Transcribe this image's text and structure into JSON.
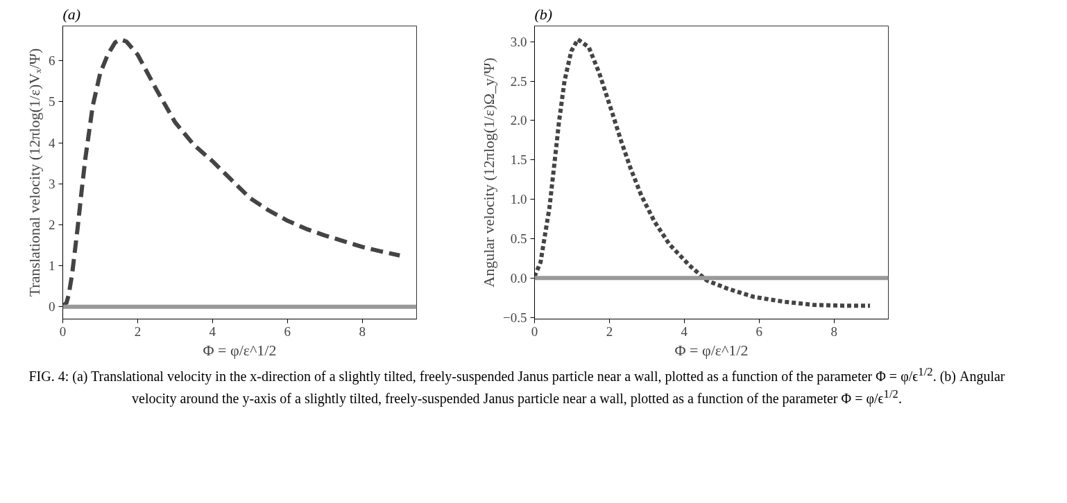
{
  "chart_data": [
    {
      "type": "line",
      "title": "(a)",
      "xlabel": "Φ = φ/ε^1/2",
      "ylabel": "Translational velocity (12πlog(1/ε)Vₓ/Ψ)",
      "xlim": [
        0,
        9.45
      ],
      "ylim": [
        -0.3,
        6.85
      ],
      "xticks": [
        0,
        2,
        4,
        6,
        8
      ],
      "yticks": [
        0,
        1,
        2,
        3,
        4,
        5,
        6
      ],
      "grid": false,
      "line_style": "dashed",
      "series": [
        {
          "color": "#444444",
          "x": [
            0,
            0.1,
            0.16,
            0.25,
            0.4,
            0.5,
            0.6,
            0.8,
            1.0,
            1.2,
            1.4,
            1.55,
            1.7,
            2.0,
            2.5,
            3.0,
            3.5,
            4.0,
            4.5,
            5.0,
            5.5,
            6.0,
            6.5,
            7.0,
            7.5,
            8.0,
            8.5,
            9.0
          ],
          "values": [
            0,
            0.1,
            0.3,
            0.8,
            1.95,
            2.8,
            3.6,
            4.9,
            5.7,
            6.15,
            6.45,
            6.52,
            6.47,
            6.15,
            5.3,
            4.5,
            3.95,
            3.55,
            3.1,
            2.65,
            2.35,
            2.1,
            1.9,
            1.74,
            1.6,
            1.46,
            1.35,
            1.25
          ]
        }
      ],
      "ref_lines": [
        {
          "axis": "y",
          "value": 0,
          "color": "#999999"
        }
      ],
      "annotations": [
        "FIG. 4: (a) Translational velocity in the x-direction of a slightly tilted, freely-suspended Janus particle near a wall, plotted as a function of the parameter Φ = φ/ϵ$^{1/2}$. (b) Angular velocity around the y-axis of a slightly tilted, freely-suspended Janus particle near a wall, plotted as a function of the parameter Φ = φ/ϵ$^{1/2}$."
      ]
    },
    {
      "type": "line",
      "title": "(b)",
      "xlabel": "Φ = φ/ε^1/2",
      "ylabel": "Angular velocity (12πlog(1/ε)Ω_y/Ψ)",
      "xlim": [
        0,
        9.45
      ],
      "ylim": [
        -0.52,
        3.2
      ],
      "xticks": [
        0,
        2,
        4,
        6,
        8
      ],
      "yticks": [
        {
          "value": -0.5,
          "label": "−0.5"
        },
        {
          "value": 0,
          "label": "0.0"
        },
        {
          "value": 0.5,
          "label": "0.5"
        },
        {
          "value": 1,
          "label": "1.0"
        },
        {
          "value": 1.5,
          "label": "1.5"
        },
        {
          "value": 2,
          "label": "2.0"
        },
        {
          "value": 2.5,
          "label": "2.5"
        },
        {
          "value": 3,
          "label": "3.0"
        }
      ],
      "grid": false,
      "line_style": "dotted",
      "series": [
        {
          "color": "#444444",
          "x": [
            0,
            0.16,
            0.4,
            0.53,
            0.65,
            0.8,
            0.98,
            1.16,
            1.45,
            1.73,
            2.08,
            2.32,
            2.56,
            2.85,
            3.2,
            3.6,
            4.14,
            4.6,
            5.13,
            5.87,
            6.66,
            7.45,
            8.24,
            8.96
          ],
          "values": [
            0.02,
            0.2,
            0.9,
            1.45,
            1.97,
            2.5,
            2.88,
            3.03,
            2.93,
            2.6,
            2.09,
            1.73,
            1.4,
            1.05,
            0.72,
            0.43,
            0.16,
            -0.03,
            -0.13,
            -0.24,
            -0.3,
            -0.34,
            -0.35,
            -0.35
          ]
        }
      ],
      "ref_lines": [
        {
          "axis": "y",
          "value": 0,
          "color": "#999999"
        }
      ]
    }
  ]
}
